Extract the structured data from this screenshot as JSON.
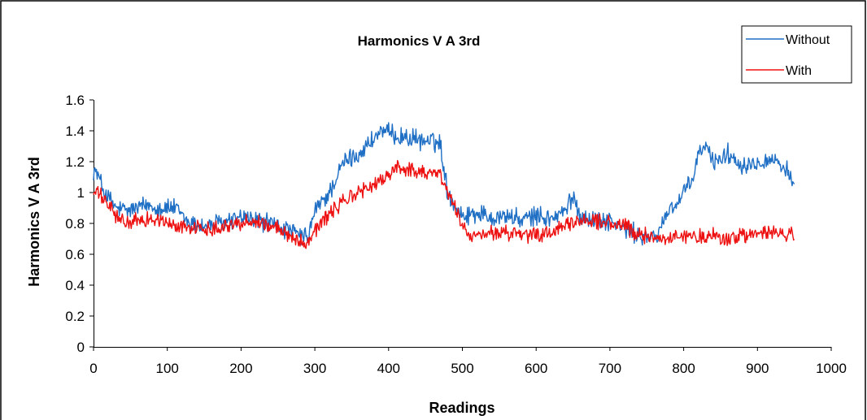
{
  "chart_data": {
    "type": "line",
    "title": "Harmonics V A 3rd",
    "xlabel": "Readings",
    "ylabel": "Harmonics V A 3rd",
    "xlim": [
      0,
      1000
    ],
    "ylim": [
      0,
      1.6
    ],
    "x_ticks": [
      "0",
      "100",
      "200",
      "300",
      "400",
      "500",
      "600",
      "700",
      "800",
      "900",
      "1000"
    ],
    "y_ticks": [
      "0",
      "0.2",
      "0.4",
      "0.6",
      "0.8",
      "1",
      "1.2",
      "1.4",
      "1.6"
    ],
    "grid": false,
    "legend_position": "top-right",
    "series": [
      {
        "name": "Without",
        "color": "#1f6fc5",
        "noise": 0.05,
        "x": [
          0,
          5,
          15,
          30,
          45,
          60,
          75,
          90,
          110,
          130,
          150,
          170,
          190,
          200,
          220,
          240,
          260,
          280,
          290,
          300,
          320,
          340,
          360,
          380,
          390,
          400,
          420,
          440,
          460,
          470,
          480,
          490,
          500,
          520,
          540,
          560,
          580,
          600,
          620,
          640,
          650,
          660,
          680,
          700,
          720,
          740,
          760,
          770,
          780,
          790,
          800,
          810,
          820,
          830,
          840,
          860,
          880,
          900,
          920,
          940,
          950
        ],
        "values": [
          1.15,
          1.12,
          1.0,
          0.9,
          0.88,
          0.9,
          0.92,
          0.9,
          0.9,
          0.8,
          0.78,
          0.8,
          0.82,
          0.84,
          0.82,
          0.8,
          0.76,
          0.72,
          0.7,
          0.88,
          1.0,
          1.2,
          1.25,
          1.35,
          1.4,
          1.38,
          1.36,
          1.34,
          1.33,
          1.32,
          1.0,
          0.92,
          0.85,
          0.87,
          0.84,
          0.85,
          0.82,
          0.85,
          0.83,
          0.88,
          0.98,
          0.85,
          0.82,
          0.82,
          0.76,
          0.72,
          0.7,
          0.78,
          0.9,
          0.92,
          1.0,
          1.05,
          1.25,
          1.3,
          1.2,
          1.25,
          1.18,
          1.2,
          1.22,
          1.15,
          1.0
        ]
      },
      {
        "name": "With",
        "color": "#ee1111",
        "noise": 0.04,
        "x": [
          0,
          5,
          20,
          35,
          50,
          70,
          90,
          110,
          130,
          150,
          170,
          200,
          220,
          240,
          260,
          270,
          280,
          290,
          300,
          320,
          340,
          360,
          380,
          400,
          410,
          420,
          440,
          460,
          470,
          480,
          490,
          500,
          510,
          540,
          560,
          580,
          600,
          620,
          640,
          660,
          680,
          700,
          720,
          740,
          760,
          780,
          800,
          820,
          840,
          860,
          880,
          900,
          920,
          940,
          950
        ],
        "values": [
          1.0,
          1.0,
          0.92,
          0.82,
          0.8,
          0.83,
          0.82,
          0.78,
          0.78,
          0.76,
          0.78,
          0.8,
          0.82,
          0.78,
          0.74,
          0.72,
          0.68,
          0.68,
          0.76,
          0.86,
          0.95,
          1.0,
          1.05,
          1.1,
          1.18,
          1.15,
          1.14,
          1.13,
          1.12,
          1.0,
          0.9,
          0.8,
          0.7,
          0.74,
          0.74,
          0.72,
          0.72,
          0.74,
          0.78,
          0.82,
          0.82,
          0.8,
          0.78,
          0.72,
          0.72,
          0.7,
          0.72,
          0.71,
          0.72,
          0.7,
          0.72,
          0.73,
          0.74,
          0.72,
          0.74
        ]
      }
    ]
  }
}
